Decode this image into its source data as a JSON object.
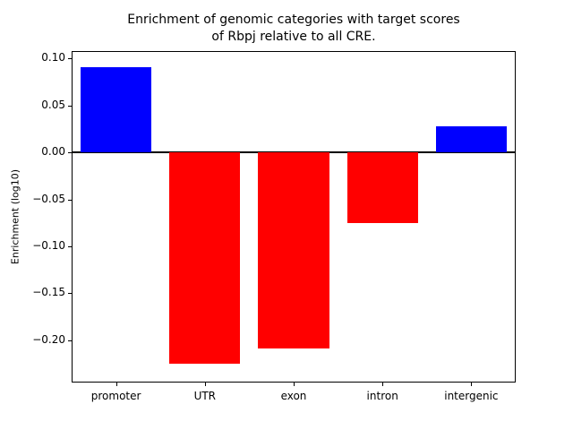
{
  "chart_data": {
    "type": "bar",
    "title": "Enrichment of genomic categories with target scores\nof Rbpj relative to all CRE.",
    "ylabel": "Enrichment (log10)",
    "xlabel": "",
    "categories": [
      "promoter",
      "UTR",
      "exon",
      "intron",
      "intergenic"
    ],
    "values": [
      0.091,
      -0.225,
      -0.209,
      -0.075,
      0.028
    ],
    "colors": [
      "#0000ff",
      "#ff0000",
      "#ff0000",
      "#ff0000",
      "#0000ff"
    ],
    "positive_color": "#0000ff",
    "negative_color": "#ff0000",
    "ylim": [
      -0.245,
      0.108
    ],
    "yticks": [
      {
        "label": "0.10",
        "value": 0.1
      },
      {
        "label": "0.05",
        "value": 0.05
      },
      {
        "label": "0.00",
        "value": 0.0
      },
      {
        "label": "−0.05",
        "value": -0.05
      },
      {
        "label": "−0.10",
        "value": -0.1
      },
      {
        "label": "−0.15",
        "value": -0.15
      },
      {
        "label": "−0.20",
        "value": -0.2
      }
    ],
    "zero_line": true,
    "grid": false,
    "legend": "none"
  }
}
